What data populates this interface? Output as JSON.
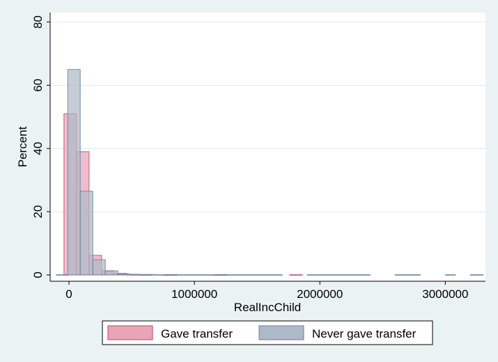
{
  "chart_data": {
    "type": "bar",
    "subtype": "overlaid histogram",
    "xlabel": "RealIncChild",
    "ylabel": "Percent",
    "xlim": [
      -150000,
      3320000
    ],
    "ylim": [
      -2,
      83
    ],
    "xticks": [
      0,
      1000000,
      2000000,
      3000000
    ],
    "xtick_labels": [
      "0",
      "1000000",
      "2000000",
      "3000000"
    ],
    "yticks": [
      0,
      20,
      40,
      60,
      80
    ],
    "ytick_labels": [
      "0",
      "20",
      "40",
      "60",
      "80"
    ],
    "grid": "horizontal",
    "legend_position": "bottom",
    "series": [
      {
        "name": "Gave transfer",
        "color": "#e8a5b8",
        "stroke": "#c0406a",
        "bins": [
          {
            "x0": -40000,
            "x1": 60000,
            "value": 51
          },
          {
            "x0": 60000,
            "x1": 160000,
            "value": 39
          },
          {
            "x0": 160000,
            "x1": 260000,
            "value": 6.2
          },
          {
            "x0": 260000,
            "x1": 360000,
            "value": 1.3
          },
          {
            "x0": 360000,
            "x1": 460000,
            "value": 0.5
          },
          {
            "x0": 460000,
            "x1": 560000,
            "value": 0.2
          },
          {
            "x0": 560000,
            "x1": 660000,
            "value": 0.1
          },
          {
            "x0": 760000,
            "x1": 860000,
            "value": 0.1
          },
          {
            "x0": 1160000,
            "x1": 1260000,
            "value": 0.1
          },
          {
            "x0": 1760000,
            "x1": 1860000,
            "value": 0.1
          }
        ]
      },
      {
        "name": "Never gave transfer",
        "color": "#aebac8",
        "stroke": "#667f99",
        "bins": [
          {
            "x0": -100000,
            "x1": -10000,
            "value": 0.1
          },
          {
            "x0": -10000,
            "x1": 90000,
            "value": 65
          },
          {
            "x0": 90000,
            "x1": 190000,
            "value": 26.5
          },
          {
            "x0": 190000,
            "x1": 290000,
            "value": 4.8
          },
          {
            "x0": 290000,
            "x1": 390000,
            "value": 1.3
          },
          {
            "x0": 390000,
            "x1": 490000,
            "value": 0.3
          },
          {
            "x0": 490000,
            "x1": 690000,
            "value": 0.15
          },
          {
            "x0": 690000,
            "x1": 1700000,
            "value": 0.1
          },
          {
            "x0": 1900000,
            "x1": 2400000,
            "value": 0.1
          },
          {
            "x0": 2600000,
            "x1": 2800000,
            "value": 0.1
          },
          {
            "x0": 3000000,
            "x1": 3080000,
            "value": 0.1
          },
          {
            "x0": 3200000,
            "x1": 3300000,
            "value": 0.1
          }
        ]
      }
    ]
  }
}
